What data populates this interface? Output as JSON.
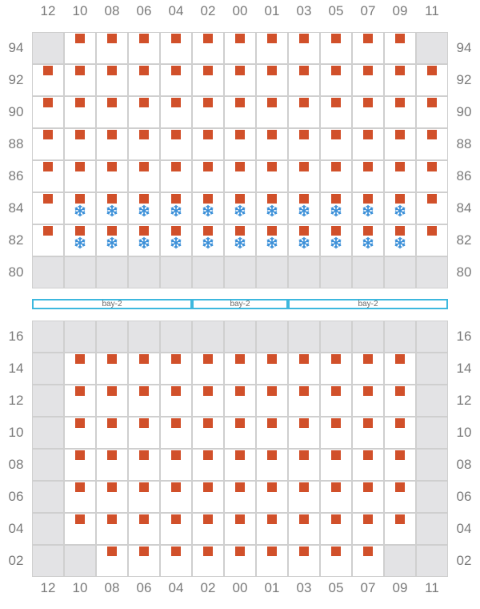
{
  "columns": [
    "12",
    "10",
    "08",
    "06",
    "04",
    "02",
    "00",
    "01",
    "03",
    "05",
    "07",
    "09",
    "11"
  ],
  "colors": {
    "container": "#d1502a",
    "reefer": "#3a8fd8",
    "blocked": "#e3e3e5",
    "cell_border": "#cfcfcf",
    "bay_border": "#3db8de"
  },
  "icons": {
    "container": "container-square",
    "reefer": "snowflake-icon"
  },
  "bay_labels": [
    {
      "label": "bay-2",
      "from_col": 0,
      "to_col": 5
    },
    {
      "label": "bay-2",
      "from_col": 5,
      "to_col": 8
    },
    {
      "label": "bay-2",
      "from_col": 8,
      "to_col": 13
    }
  ],
  "deck": {
    "tiers": [
      {
        "label": "94",
        "blocked": [
          0,
          12
        ],
        "containers": [
          1,
          2,
          3,
          4,
          5,
          6,
          7,
          8,
          9,
          10,
          11
        ],
        "reefers": []
      },
      {
        "label": "92",
        "blocked": [],
        "containers": [
          0,
          1,
          2,
          3,
          4,
          5,
          6,
          7,
          8,
          9,
          10,
          11,
          12
        ],
        "reefers": []
      },
      {
        "label": "90",
        "blocked": [],
        "containers": [
          0,
          1,
          2,
          3,
          4,
          5,
          6,
          7,
          8,
          9,
          10,
          11,
          12
        ],
        "reefers": []
      },
      {
        "label": "88",
        "blocked": [],
        "containers": [
          0,
          1,
          2,
          3,
          4,
          5,
          6,
          7,
          8,
          9,
          10,
          11,
          12
        ],
        "reefers": []
      },
      {
        "label": "86",
        "blocked": [],
        "containers": [
          0,
          1,
          2,
          3,
          4,
          5,
          6,
          7,
          8,
          9,
          10,
          11,
          12
        ],
        "reefers": []
      },
      {
        "label": "84",
        "blocked": [],
        "containers": [
          0,
          1,
          2,
          3,
          4,
          5,
          6,
          7,
          8,
          9,
          10,
          11,
          12
        ],
        "reefers": [
          1,
          2,
          3,
          4,
          5,
          6,
          7,
          8,
          9,
          10,
          11
        ]
      },
      {
        "label": "82",
        "blocked": [],
        "containers": [
          0,
          1,
          2,
          3,
          4,
          5,
          6,
          7,
          8,
          9,
          10,
          11,
          12
        ],
        "reefers": [
          1,
          2,
          3,
          4,
          5,
          6,
          7,
          8,
          9,
          10,
          11
        ]
      },
      {
        "label": "80",
        "blocked": [
          0,
          1,
          2,
          3,
          4,
          5,
          6,
          7,
          8,
          9,
          10,
          11,
          12
        ],
        "containers": [],
        "reefers": []
      }
    ]
  },
  "hold": {
    "tiers": [
      {
        "label": "16",
        "blocked": [
          0,
          1,
          2,
          3,
          4,
          5,
          6,
          7,
          8,
          9,
          10,
          11,
          12
        ],
        "containers": [],
        "reefers": []
      },
      {
        "label": "14",
        "blocked": [
          0,
          12
        ],
        "containers": [
          1,
          2,
          3,
          4,
          5,
          6,
          7,
          8,
          9,
          10,
          11
        ],
        "reefers": []
      },
      {
        "label": "12",
        "blocked": [
          0,
          12
        ],
        "containers": [
          1,
          2,
          3,
          4,
          5,
          6,
          7,
          8,
          9,
          10,
          11
        ],
        "reefers": []
      },
      {
        "label": "10",
        "blocked": [
          0,
          12
        ],
        "containers": [
          1,
          2,
          3,
          4,
          5,
          6,
          7,
          8,
          9,
          10,
          11
        ],
        "reefers": []
      },
      {
        "label": "08",
        "blocked": [
          0,
          12
        ],
        "containers": [
          1,
          2,
          3,
          4,
          5,
          6,
          7,
          8,
          9,
          10,
          11
        ],
        "reefers": []
      },
      {
        "label": "06",
        "blocked": [
          0,
          12
        ],
        "containers": [
          1,
          2,
          3,
          4,
          5,
          6,
          7,
          8,
          9,
          10,
          11
        ],
        "reefers": []
      },
      {
        "label": "04",
        "blocked": [
          0,
          12
        ],
        "containers": [
          1,
          2,
          3,
          4,
          5,
          6,
          7,
          8,
          9,
          10,
          11
        ],
        "reefers": []
      },
      {
        "label": "02",
        "blocked": [
          0,
          1,
          11,
          12
        ],
        "containers": [
          2,
          3,
          4,
          5,
          6,
          7,
          8,
          9,
          10
        ],
        "reefers": []
      }
    ]
  }
}
